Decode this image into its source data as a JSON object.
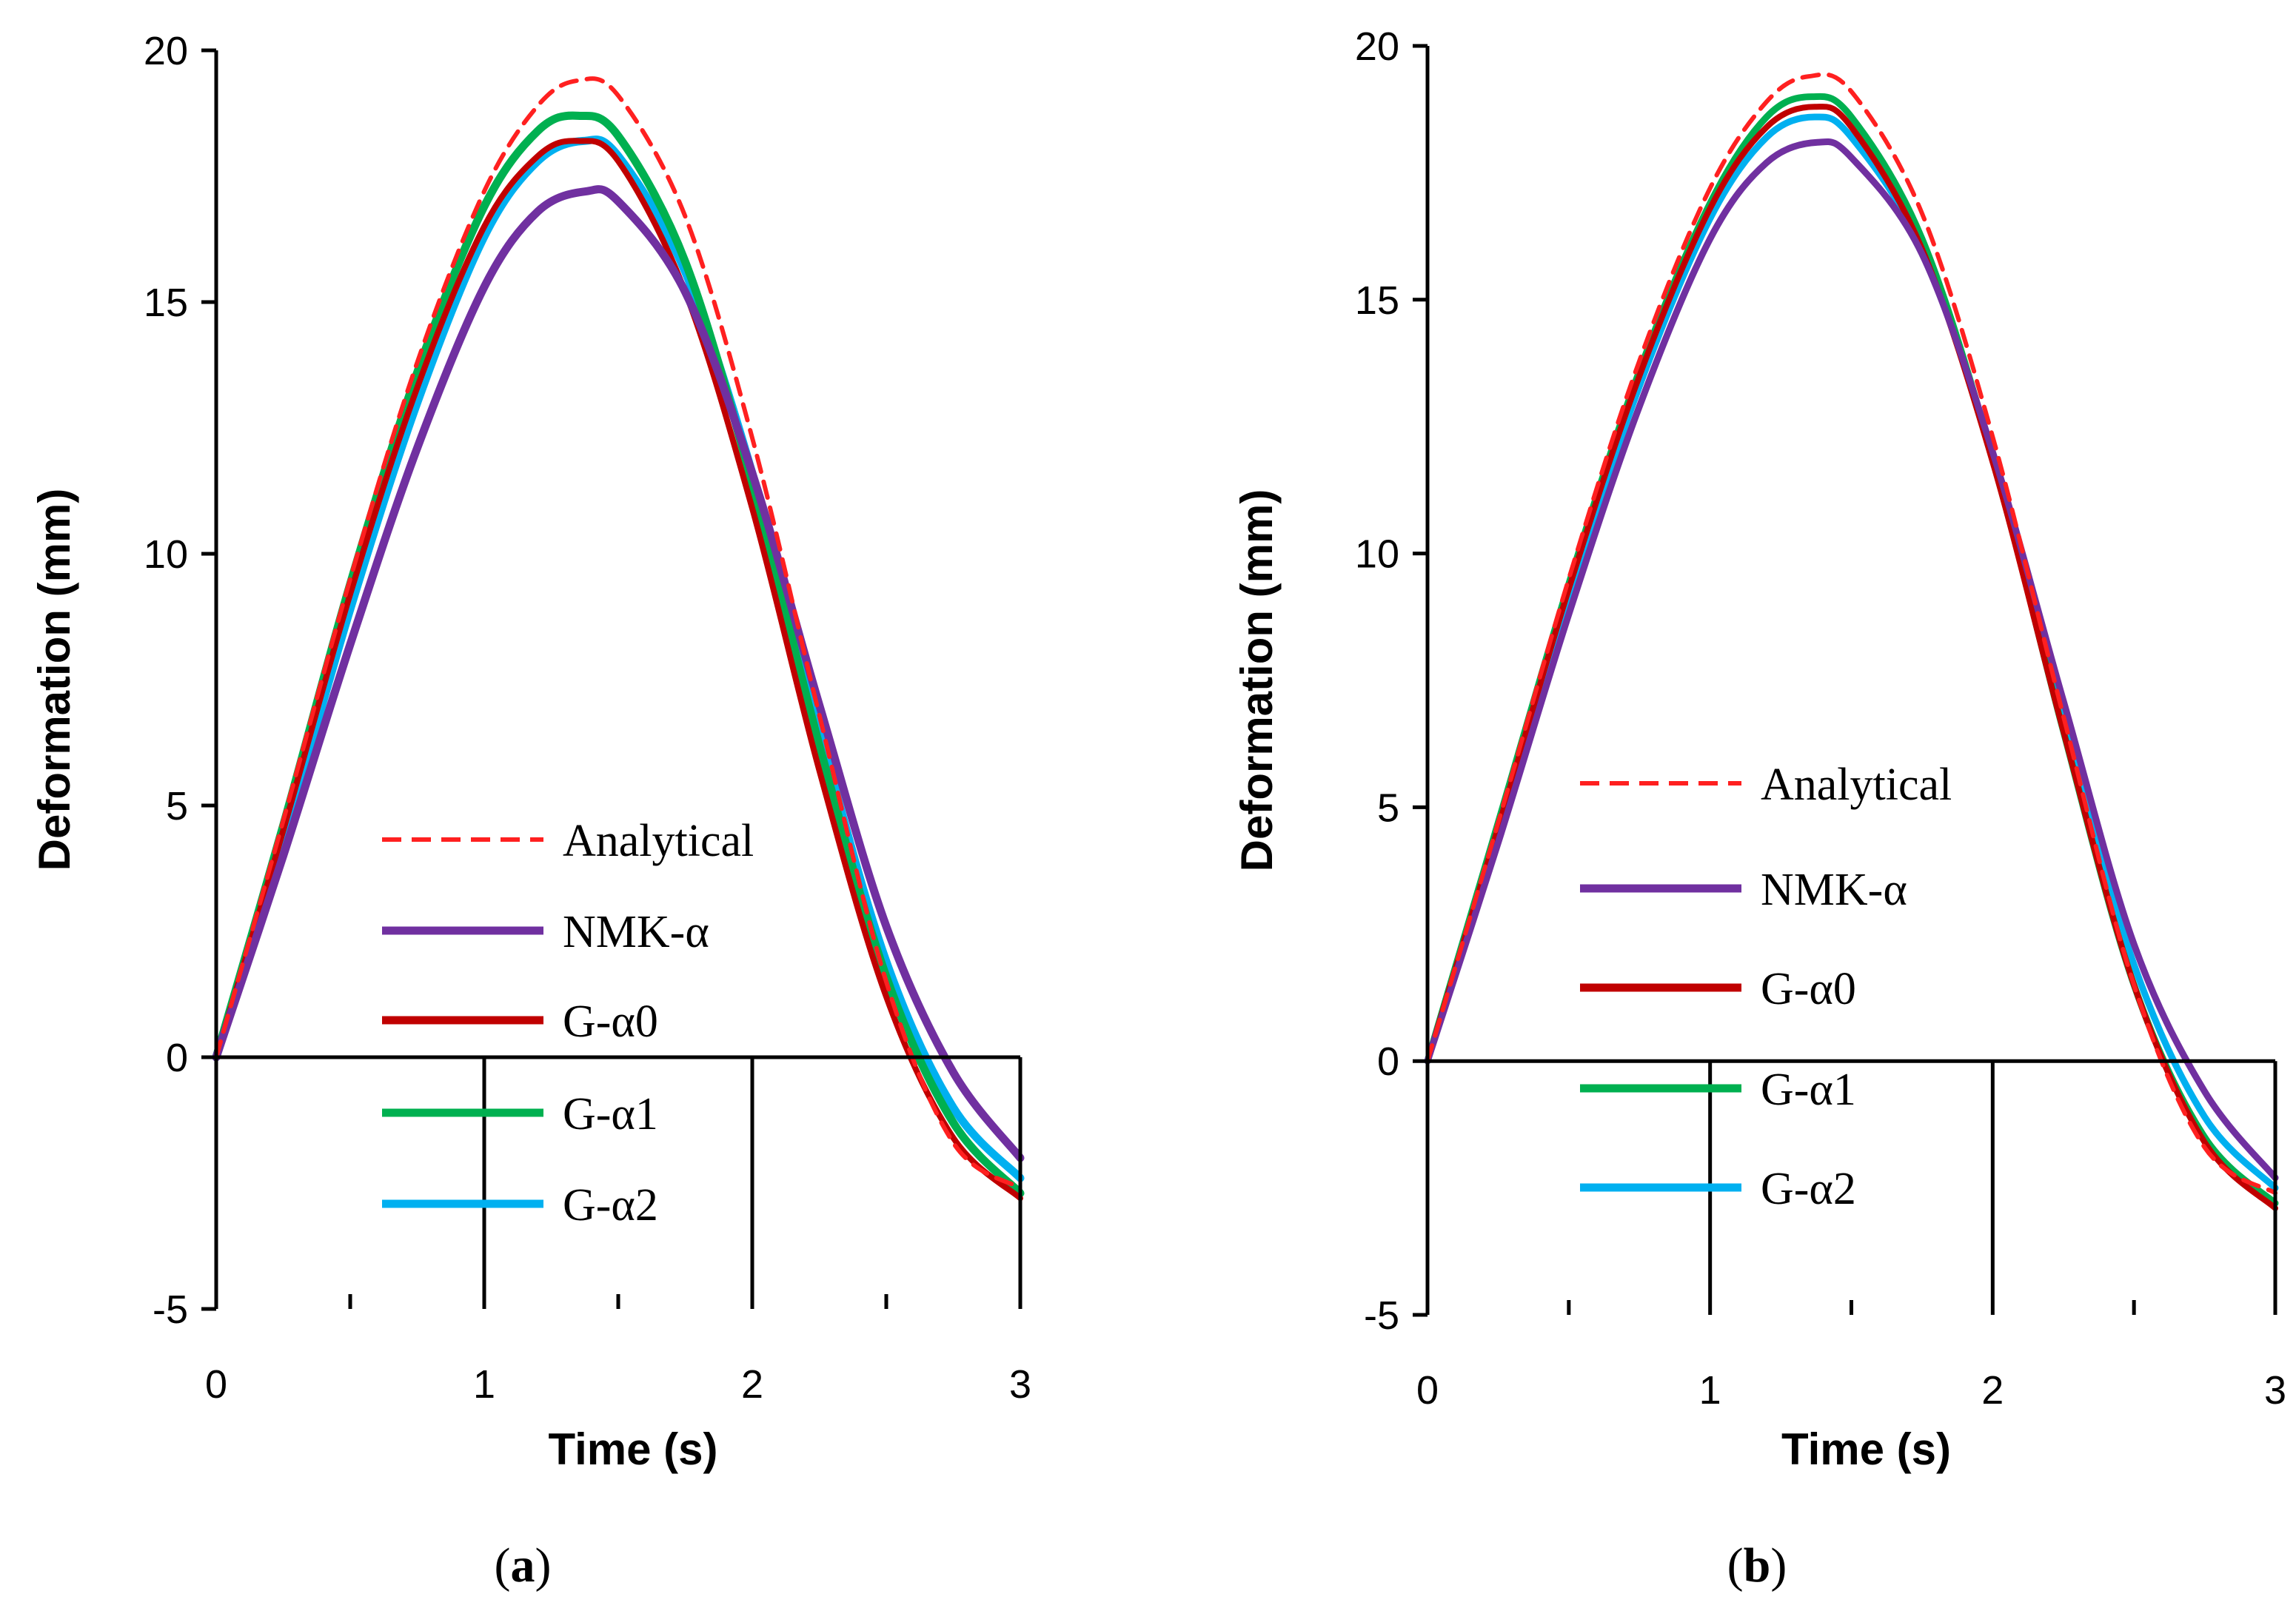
{
  "chart_data": [
    {
      "type": "line",
      "panel": "a",
      "caption": {
        "open": "(",
        "letter": "a",
        "close": ")"
      },
      "xlabel": "Time (s)",
      "ylabel": "Deformation (mm)",
      "xlim": [
        0,
        3
      ],
      "ylim": [
        -5,
        20
      ],
      "xticks": [
        0,
        1,
        2,
        3
      ],
      "xminor": [
        0.5,
        1.5,
        2.5
      ],
      "yticks": [
        -5,
        0,
        5,
        10,
        15,
        20
      ],
      "grid": false,
      "legend_position": "center-bottom",
      "series": [
        {
          "name": "Analytical",
          "color": "#ff2020",
          "dash": true,
          "stroke": 6,
          "x": [
            0,
            0.25,
            0.5,
            0.75,
            1.0,
            1.2,
            1.35,
            1.5,
            1.75,
            2.0,
            2.25,
            2.5,
            2.75,
            3.0
          ],
          "y": [
            0,
            4.7,
            9.5,
            13.8,
            17.2,
            18.9,
            19.4,
            19.1,
            16.7,
            12.3,
            6.8,
            1.5,
            -1.7,
            -2.6
          ]
        },
        {
          "name": "NMK-α",
          "color": "#7030a0",
          "dash": false,
          "stroke": 11,
          "x": [
            0,
            0.25,
            0.5,
            0.75,
            1.0,
            1.2,
            1.38,
            1.5,
            1.75,
            2.0,
            2.25,
            2.5,
            2.75,
            3.0
          ],
          "y": [
            0,
            4.0,
            8.2,
            12.1,
            15.3,
            16.8,
            17.2,
            17.0,
            15.2,
            11.6,
            7.0,
            2.6,
            -0.3,
            -2.0
          ]
        },
        {
          "name": "G-α0",
          "color": "#c00000",
          "dash": false,
          "stroke": 8,
          "x": [
            0,
            0.25,
            0.5,
            0.75,
            1.0,
            1.2,
            1.35,
            1.5,
            1.75,
            2.0,
            2.25,
            2.5,
            2.75,
            3.0
          ],
          "y": [
            0,
            4.5,
            9.2,
            13.3,
            16.5,
            17.9,
            18.2,
            17.8,
            15.2,
            10.9,
            5.7,
            1.2,
            -1.6,
            -2.8
          ]
        },
        {
          "name": "G-α1",
          "color": "#00b050",
          "dash": false,
          "stroke": 11,
          "x": [
            0,
            0.25,
            0.5,
            0.75,
            1.0,
            1.2,
            1.35,
            1.5,
            1.75,
            2.0,
            2.25,
            2.5,
            2.75,
            3.0
          ],
          "y": [
            0,
            4.6,
            9.4,
            13.6,
            16.9,
            18.4,
            18.7,
            18.3,
            15.8,
            11.4,
            6.2,
            1.6,
            -1.3,
            -2.7
          ]
        },
        {
          "name": "G-α2",
          "color": "#00b0f0",
          "dash": false,
          "stroke": 11,
          "x": [
            0,
            0.25,
            0.5,
            0.75,
            1.0,
            1.2,
            1.37,
            1.5,
            1.75,
            2.0,
            2.25,
            2.5,
            2.75,
            3.0
          ],
          "y": [
            0,
            4.3,
            8.9,
            13.0,
            16.3,
            17.8,
            18.2,
            17.9,
            15.6,
            11.6,
            6.5,
            1.9,
            -1.0,
            -2.4
          ]
        }
      ]
    },
    {
      "type": "line",
      "panel": "b",
      "caption": {
        "open": "(",
        "letter": "b",
        "close": ")"
      },
      "xlabel": "Time (s)",
      "ylabel": "Deformation (mm)",
      "xlim": [
        0,
        3
      ],
      "ylim": [
        -5,
        20
      ],
      "xticks": [
        0,
        1,
        2,
        3
      ],
      "xminor": [
        0.5,
        1.5,
        2.5
      ],
      "yticks": [
        -5,
        0,
        5,
        10,
        15,
        20
      ],
      "grid": false,
      "legend_position": "center-left",
      "series": [
        {
          "name": "Analytical",
          "color": "#ff2020",
          "dash": true,
          "stroke": 6,
          "x": [
            0,
            0.25,
            0.5,
            0.75,
            1.0,
            1.2,
            1.35,
            1.5,
            1.75,
            2.0,
            2.25,
            2.5,
            2.75,
            3.0
          ],
          "y": [
            0,
            4.7,
            9.5,
            13.8,
            17.2,
            18.9,
            19.4,
            19.1,
            16.7,
            12.3,
            6.8,
            1.5,
            -1.7,
            -2.6
          ]
        },
        {
          "name": "NMK-α",
          "color": "#7030a0",
          "dash": false,
          "stroke": 9,
          "x": [
            0,
            0.25,
            0.5,
            0.75,
            1.0,
            1.2,
            1.38,
            1.5,
            1.75,
            2.0,
            2.25,
            2.5,
            2.75,
            3.0
          ],
          "y": [
            0,
            4.3,
            8.8,
            12.9,
            16.2,
            17.7,
            18.1,
            17.8,
            15.9,
            12.0,
            7.1,
            2.3,
            -0.6,
            -2.3
          ]
        },
        {
          "name": "G-α0",
          "color": "#c00000",
          "dash": false,
          "stroke": 8,
          "x": [
            0,
            0.25,
            0.5,
            0.75,
            1.0,
            1.2,
            1.37,
            1.5,
            1.75,
            2.0,
            2.25,
            2.5,
            2.75,
            3.0
          ],
          "y": [
            0,
            4.6,
            9.3,
            13.5,
            16.8,
            18.4,
            18.8,
            18.4,
            16.0,
            11.8,
            6.5,
            1.5,
            -1.6,
            -2.9
          ]
        },
        {
          "name": "G-α1",
          "color": "#00b050",
          "dash": false,
          "stroke": 9,
          "x": [
            0,
            0.25,
            0.5,
            0.75,
            1.0,
            1.2,
            1.36,
            1.5,
            1.75,
            2.0,
            2.25,
            2.5,
            2.75,
            3.0
          ],
          "y": [
            0,
            4.7,
            9.4,
            13.6,
            16.9,
            18.6,
            19.0,
            18.6,
            16.2,
            11.9,
            6.5,
            1.5,
            -1.5,
            -2.8
          ]
        },
        {
          "name": "G-α2",
          "color": "#00b0f0",
          "dash": false,
          "stroke": 9,
          "x": [
            0,
            0.25,
            0.5,
            0.75,
            1.0,
            1.2,
            1.37,
            1.5,
            1.75,
            2.0,
            2.25,
            2.5,
            2.75,
            3.0
          ],
          "y": [
            0,
            4.5,
            9.1,
            13.3,
            16.6,
            18.2,
            18.6,
            18.2,
            16.0,
            11.9,
            6.8,
            1.9,
            -1.1,
            -2.5
          ]
        }
      ]
    }
  ]
}
